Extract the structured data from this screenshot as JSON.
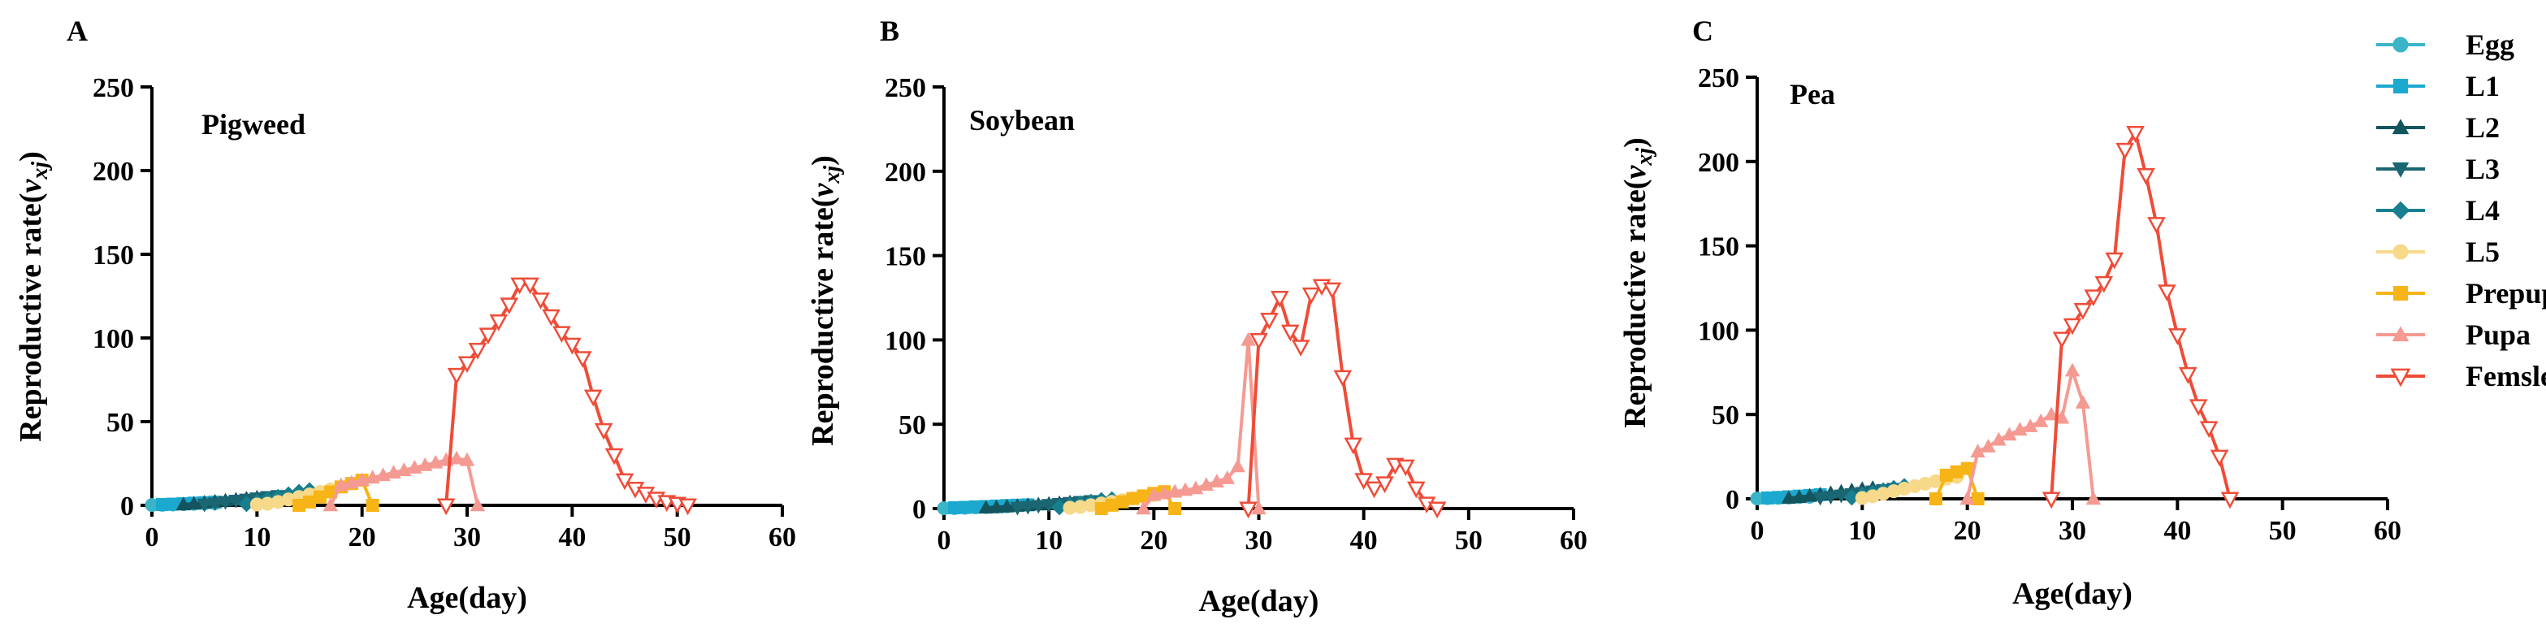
{
  "chart_data": [
    {
      "type": "line",
      "panel_letter": "A",
      "title": "Pigweed",
      "xlabel": "Age(day)",
      "ylabel": "Reproductive rate",
      "ylabel_symbol": "v",
      "ylabel_sub": "xj",
      "xlim": [
        0,
        60
      ],
      "ylim": [
        0,
        250
      ],
      "xticks": [
        "0",
        "10",
        "20",
        "30",
        "40",
        "50",
        "60"
      ],
      "yticks": [
        "0",
        "50",
        "100",
        "150",
        "200",
        "250"
      ],
      "series": [
        {
          "name": "Egg",
          "x": [
            0,
            1,
            2,
            3,
            4,
            5,
            6
          ],
          "y": [
            0.2,
            0.3,
            0.5,
            0.7,
            0.9,
            1.1,
            1.3
          ]
        },
        {
          "name": "L1",
          "x": [
            1,
            2,
            3,
            4,
            5,
            6
          ],
          "y": [
            0.5,
            0.7,
            1.0,
            1.3,
            1.6,
            1.9
          ]
        },
        {
          "name": "L2",
          "x": [
            3,
            4,
            5,
            6,
            7,
            8,
            9,
            10
          ],
          "y": [
            0.5,
            1.0,
            1.6,
            2.2,
            2.8,
            3.4,
            4.0,
            4.6
          ]
        },
        {
          "name": "L3",
          "x": [
            5,
            6,
            7,
            8,
            9,
            10,
            11,
            12
          ],
          "y": [
            0.5,
            1.2,
            2.0,
            2.8,
            3.5,
            4.2,
            5.0,
            5.6
          ]
        },
        {
          "name": "L4",
          "x": [
            9,
            10,
            11,
            12,
            13,
            14,
            15
          ],
          "y": [
            0.8,
            2.0,
            3.5,
            5.0,
            6.5,
            8.0,
            9.0
          ]
        },
        {
          "name": "L5",
          "x": [
            10,
            11,
            12,
            13,
            14,
            15,
            16,
            17
          ],
          "y": [
            0.5,
            1.0,
            2.0,
            3.5,
            5.0,
            6.5,
            8.0,
            9.5
          ]
        },
        {
          "name": "Prepupa",
          "x": [
            14,
            15,
            16,
            17,
            18,
            19,
            20,
            21
          ],
          "y": [
            0,
            2.0,
            5.0,
            8.0,
            11.0,
            13.0,
            15.0,
            0
          ]
        },
        {
          "name": "Pupa",
          "x": [
            17,
            18,
            19,
            20,
            21,
            22,
            23,
            24,
            25,
            26,
            27,
            28,
            29,
            30,
            31
          ],
          "y": [
            0,
            12.0,
            13.5,
            15.0,
            16.5,
            18.0,
            19.5,
            21.0,
            22.5,
            24.0,
            25.5,
            27.0,
            28.0,
            27.0,
            0
          ]
        },
        {
          "name": "Femsle",
          "x": [
            28,
            29,
            30,
            31,
            32,
            33,
            34,
            35,
            36,
            37,
            38,
            39,
            40,
            41,
            42,
            43,
            44,
            45,
            46,
            47,
            48,
            49,
            50,
            51
          ],
          "y": [
            0,
            78,
            85,
            93,
            102,
            110,
            120,
            132,
            132,
            123,
            113,
            103,
            96,
            88,
            65,
            45,
            30,
            15,
            10,
            7,
            4,
            2,
            1,
            0
          ]
        }
      ]
    },
    {
      "type": "line",
      "panel_letter": "B",
      "title": "Soybean",
      "xlabel": "Age(day)",
      "ylabel": "Reproductive rate",
      "ylabel_symbol": "v",
      "ylabel_sub": "xj",
      "xlim": [
        0,
        60
      ],
      "ylim": [
        0,
        250
      ],
      "xticks": [
        "0",
        "10",
        "20",
        "30",
        "40",
        "50",
        "60"
      ],
      "yticks": [
        "0",
        "50",
        "100",
        "150",
        "200",
        "250"
      ],
      "series": [
        {
          "name": "Egg",
          "x": [
            0,
            1,
            2,
            3,
            4,
            5,
            6
          ],
          "y": [
            0.2,
            0.3,
            0.5,
            0.7,
            0.9,
            1.1,
            1.3
          ]
        },
        {
          "name": "L1",
          "x": [
            1,
            2,
            3,
            4,
            5,
            6,
            7,
            8
          ],
          "y": [
            0.5,
            0.7,
            1.0,
            1.2,
            1.5,
            1.8,
            2.0,
            2.2
          ]
        },
        {
          "name": "L2",
          "x": [
            4,
            5,
            6,
            7,
            8,
            9,
            10,
            11,
            12
          ],
          "y": [
            0.5,
            0.8,
            1.2,
            1.6,
            2.0,
            2.4,
            2.8,
            3.2,
            3.6
          ]
        },
        {
          "name": "L3",
          "x": [
            7,
            8,
            9,
            10,
            11,
            12,
            13,
            14
          ],
          "y": [
            0.5,
            1.0,
            1.6,
            2.2,
            2.8,
            3.4,
            4.0,
            4.5
          ]
        },
        {
          "name": "L4",
          "x": [
            11,
            12,
            13,
            14,
            15,
            16
          ],
          "y": [
            0.8,
            2.0,
            3.0,
            4.0,
            5.0,
            5.5
          ]
        },
        {
          "name": "L5",
          "x": [
            12,
            13,
            14,
            15,
            16,
            17,
            18,
            19,
            20
          ],
          "y": [
            0.5,
            1.0,
            2.0,
            3.0,
            4.0,
            5.0,
            6.0,
            7.0,
            8.0
          ]
        },
        {
          "name": "Prepupa",
          "x": [
            15,
            16,
            17,
            18,
            19,
            20,
            21,
            22
          ],
          "y": [
            0,
            2.0,
            4.0,
            6.0,
            7.5,
            9.0,
            10.0,
            0
          ]
        },
        {
          "name": "Pupa",
          "x": [
            19,
            20,
            21,
            22,
            23,
            24,
            25,
            26,
            27,
            28,
            29,
            30
          ],
          "y": [
            0,
            8.0,
            9.0,
            10.0,
            11.0,
            12.0,
            14.0,
            16.0,
            18.0,
            25.0,
            100,
            0
          ]
        },
        {
          "name": "Femsle",
          "x": [
            29,
            30,
            31,
            32,
            33,
            34,
            35,
            36,
            37,
            38,
            39,
            40,
            41,
            42,
            43,
            44,
            45,
            46,
            47
          ],
          "y": [
            0,
            100,
            112,
            125,
            105,
            96,
            127,
            132,
            130,
            78,
            38,
            17,
            12,
            15,
            26,
            25,
            12,
            3,
            0
          ]
        }
      ]
    },
    {
      "type": "line",
      "panel_letter": "C",
      "title": "Pea",
      "xlabel": "Age(day)",
      "ylabel": "Reproductive rate",
      "ylabel_symbol": "v",
      "ylabel_sub": "xj",
      "xlim": [
        0,
        60
      ],
      "ylim": [
        0,
        250
      ],
      "xticks": [
        "0",
        "10",
        "20",
        "30",
        "40",
        "50",
        "60"
      ],
      "yticks": [
        "0",
        "50",
        "100",
        "150",
        "200",
        "250"
      ],
      "series": [
        {
          "name": "Egg",
          "x": [
            0,
            1,
            2,
            3,
            4,
            5
          ],
          "y": [
            0.2,
            0.4,
            0.6,
            0.8,
            1.0,
            1.2
          ]
        },
        {
          "name": "L1",
          "x": [
            1,
            2,
            3,
            4,
            5,
            6
          ],
          "y": [
            0.5,
            0.8,
            1.2,
            1.6,
            2.0,
            2.4
          ]
        },
        {
          "name": "L2",
          "x": [
            3,
            4,
            5,
            6,
            7,
            8,
            9,
            10,
            11
          ],
          "y": [
            0.5,
            1.0,
            1.8,
            2.6,
            3.4,
            4.2,
            5.0,
            5.8,
            6.4
          ]
        },
        {
          "name": "L3",
          "x": [
            6,
            7,
            8,
            9,
            10,
            11,
            12,
            13
          ],
          "y": [
            0.5,
            1.2,
            2.0,
            2.8,
            3.6,
            4.4,
            5.2,
            6.0
          ]
        },
        {
          "name": "L4",
          "x": [
            9,
            10,
            11,
            12,
            13,
            14
          ],
          "y": [
            0.8,
            2.2,
            3.6,
            5.0,
            6.4,
            7.5
          ]
        },
        {
          "name": "L5",
          "x": [
            10,
            11,
            12,
            13,
            14,
            15,
            16,
            17,
            18,
            19
          ],
          "y": [
            0.5,
            1.5,
            3.0,
            4.5,
            6.0,
            7.5,
            9.0,
            10.5,
            12.0,
            13.0
          ]
        },
        {
          "name": "Prepupa",
          "x": [
            17,
            18,
            19,
            20,
            21
          ],
          "y": [
            0,
            14.0,
            16.0,
            18.0,
            0
          ]
        },
        {
          "name": "Pupa",
          "x": [
            20,
            21,
            22,
            23,
            24,
            25,
            26,
            27,
            28,
            29,
            30,
            31,
            32
          ],
          "y": [
            0,
            28,
            31,
            35,
            38,
            41,
            43,
            46,
            50,
            48,
            76,
            57,
            0
          ]
        },
        {
          "name": "Femsle",
          "x": [
            28,
            29,
            30,
            31,
            32,
            33,
            34,
            35,
            36,
            37,
            38,
            39,
            40,
            41,
            42,
            43,
            44,
            45
          ],
          "y": [
            0,
            95,
            103,
            112,
            120,
            128,
            142,
            207,
            217,
            192,
            163,
            123,
            97,
            74,
            55,
            42,
            25,
            0
          ]
        }
      ]
    }
  ],
  "legend": {
    "position": "right",
    "entries": [
      {
        "label": "Egg",
        "color": "#3CB4C8",
        "marker": "circle"
      },
      {
        "label": "L1",
        "color": "#1CA9D0",
        "marker": "square"
      },
      {
        "label": "L2",
        "color": "#13555F",
        "marker": "triangle-up"
      },
      {
        "label": "L3",
        "color": "#1B6673",
        "marker": "triangle-down"
      },
      {
        "label": "L4",
        "color": "#177F8F",
        "marker": "diamond"
      },
      {
        "label": "L5",
        "color": "#F7D98A",
        "marker": "circle"
      },
      {
        "label": "Prepupa",
        "color": "#F7B416",
        "marker": "square"
      },
      {
        "label": "Pupa",
        "color": "#F59A92",
        "marker": "triangle-up"
      },
      {
        "label": "Femsle",
        "color": "#EF4C38",
        "marker": "triangle-down-open"
      }
    ]
  }
}
